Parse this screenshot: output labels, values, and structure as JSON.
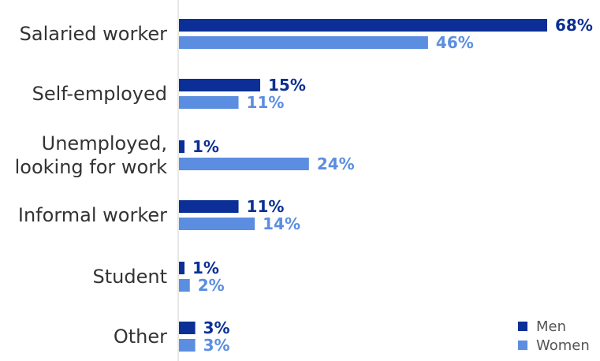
{
  "chart_data": {
    "type": "bar",
    "orientation": "horizontal",
    "categories": [
      [
        "Salaried worker"
      ],
      [
        "Self-employed"
      ],
      [
        "Unemployed,",
        "looking for work"
      ],
      [
        "Informal worker"
      ],
      [
        "Student"
      ],
      [
        "Other"
      ]
    ],
    "series": [
      {
        "name": "Men",
        "color": "#0b2f96",
        "values": [
          68,
          15,
          1,
          11,
          1,
          3
        ],
        "labels": [
          "68%",
          "15%",
          "1%",
          "11%",
          "1%",
          "3%"
        ]
      },
      {
        "name": "Women",
        "color": "#5b8ee0",
        "values": [
          46,
          11,
          24,
          14,
          2,
          3
        ],
        "labels": [
          "46%",
          "11%",
          "24%",
          "14%",
          "2%",
          "3%"
        ]
      }
    ],
    "xlim": [
      0,
      70
    ],
    "legend_position": "bottom-right",
    "grid": false,
    "title": "",
    "xlabel": "",
    "ylabel": ""
  }
}
